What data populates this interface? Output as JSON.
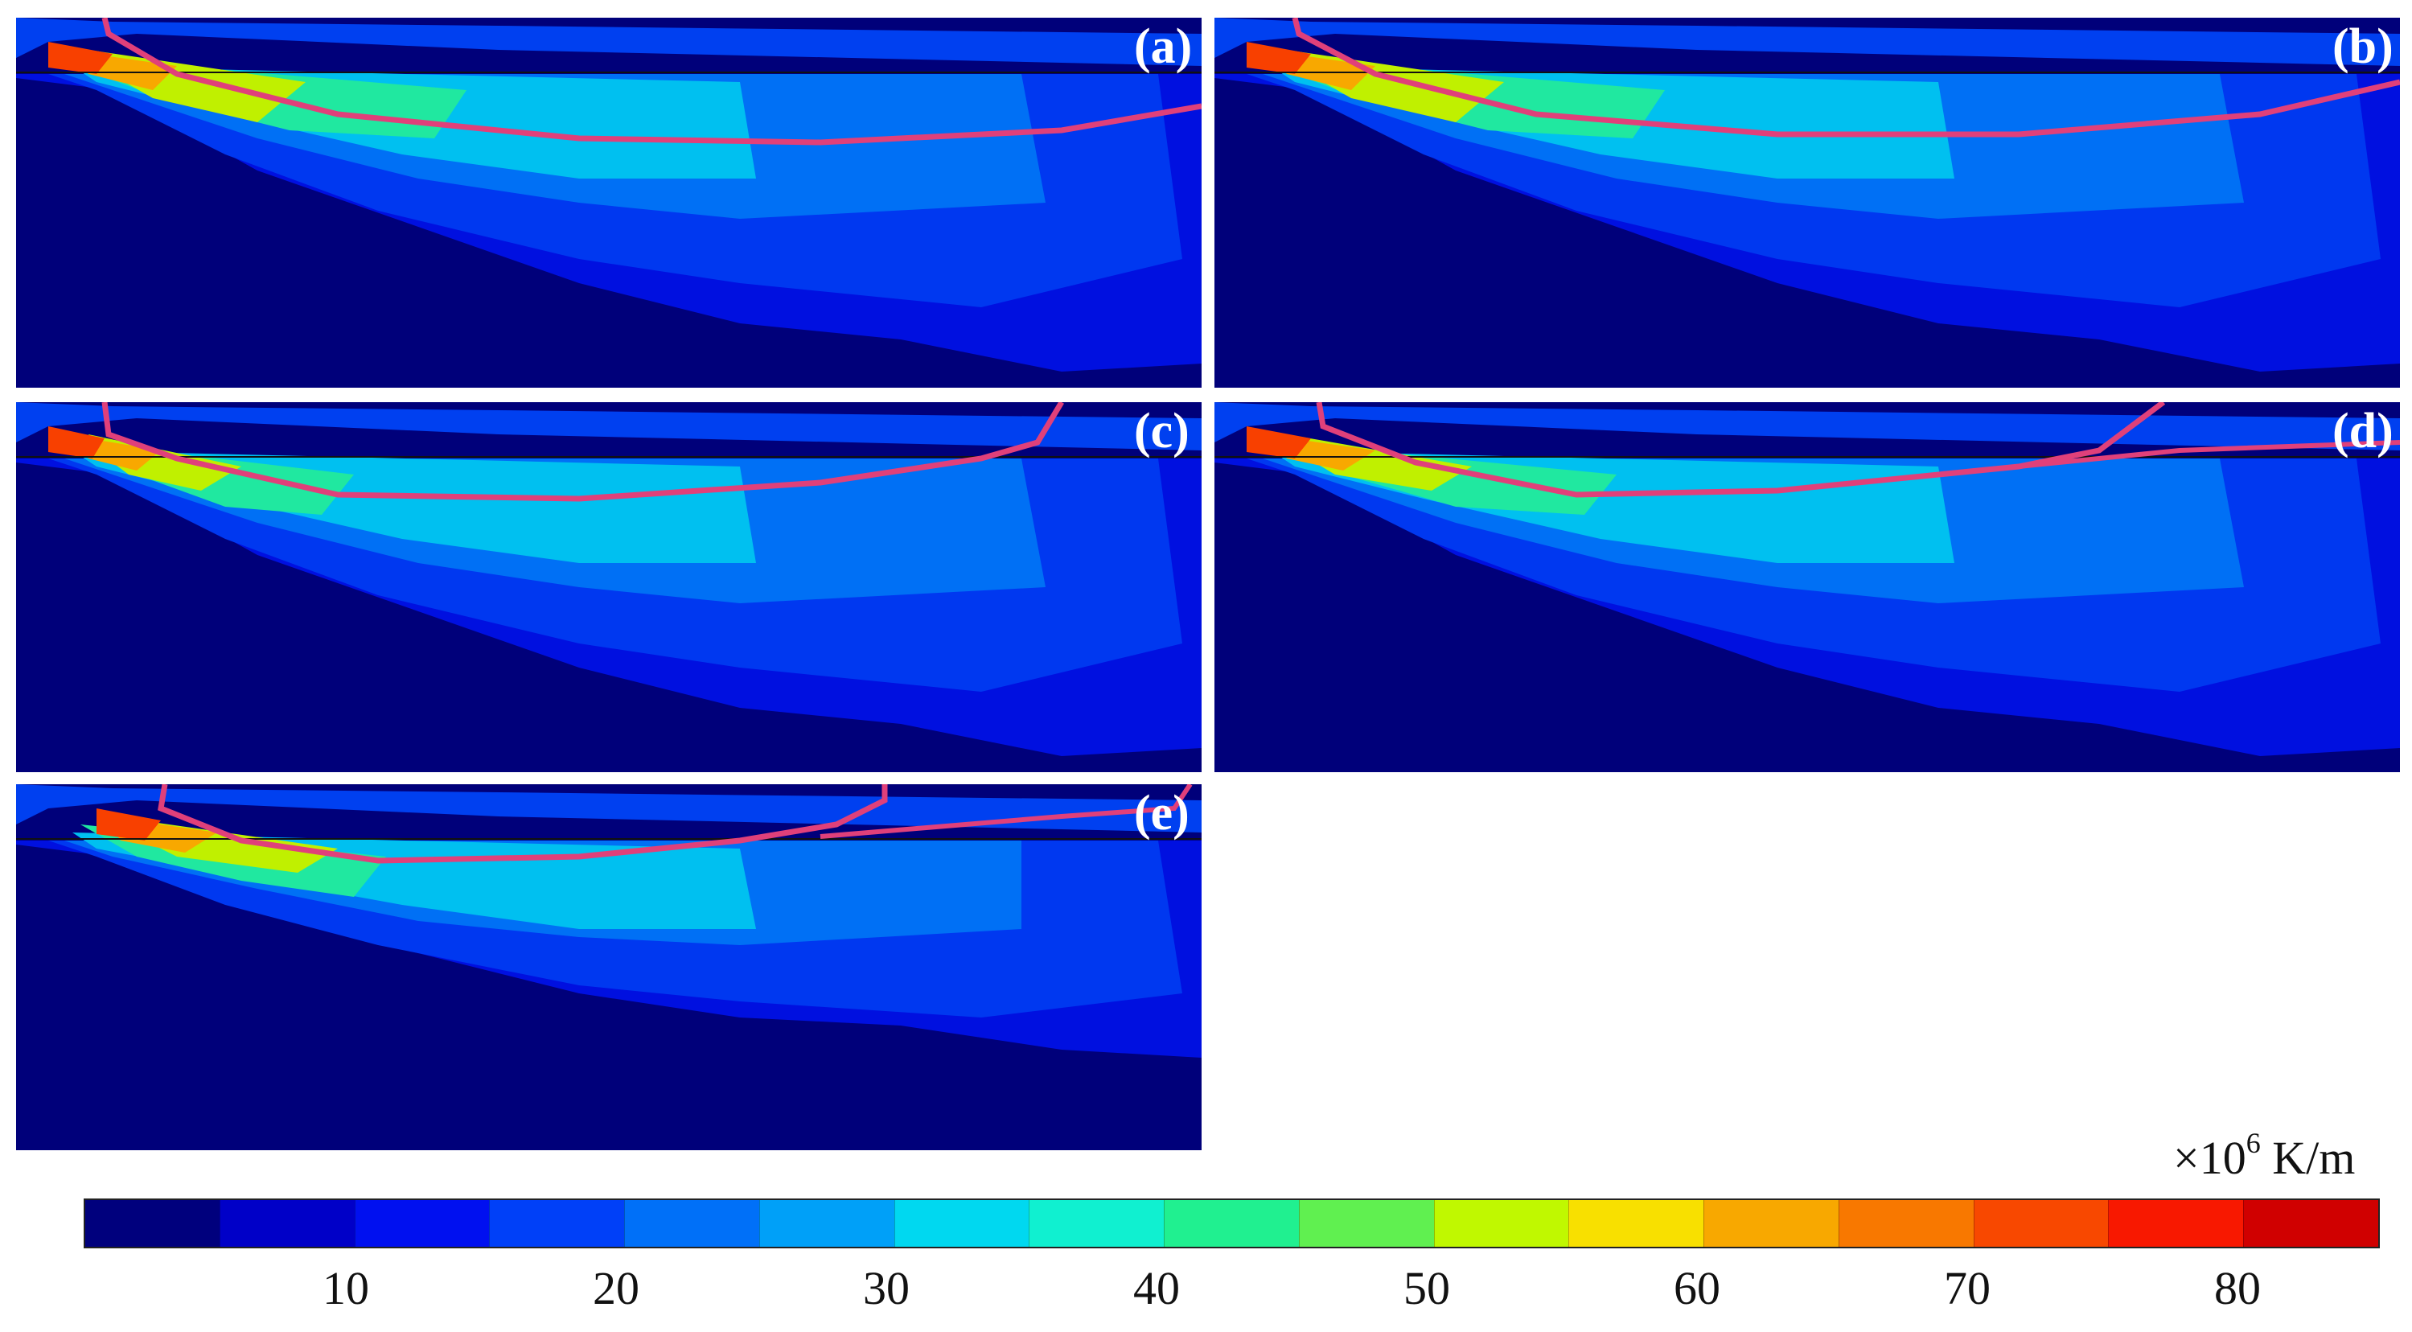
{
  "panels": [
    {
      "label": "(a)"
    },
    {
      "label": "(b)"
    },
    {
      "label": "(c)"
    },
    {
      "label": "(d)"
    },
    {
      "label": "(e)"
    }
  ],
  "colorbar": {
    "unit_prefix": "×10",
    "unit_exp": "6",
    "unit_suffix": " K/m",
    "ticks": [
      "10",
      "20",
      "30",
      "40",
      "50",
      "60",
      "70",
      "80"
    ],
    "colors": [
      "#00007d",
      "#0000c8",
      "#0010f0",
      "#0040f8",
      "#0070f8",
      "#00a0f8",
      "#00d8f0",
      "#10f0d0",
      "#20f090",
      "#60f050",
      "#c0f800",
      "#f8e000",
      "#f8a800",
      "#f87800",
      "#f84800",
      "#f81800",
      "#d00000"
    ]
  }
}
